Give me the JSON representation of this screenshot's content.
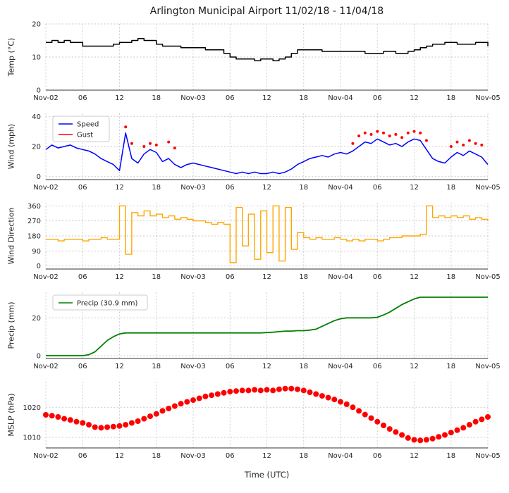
{
  "figure": {
    "title": "Arlington Municipal Airport 11/02/18 - 11/04/18",
    "xlabel": "Time (UTC)",
    "x_range_hours": [
      0,
      72
    ],
    "x_ticks_hours": [
      0,
      6,
      12,
      18,
      24,
      30,
      36,
      42,
      48,
      54,
      60,
      66,
      72
    ],
    "x_tick_labels": [
      "Nov-02",
      "06",
      "12",
      "18",
      "Nov-03",
      "06",
      "12",
      "18",
      "Nov-04",
      "06",
      "12",
      "18",
      "Nov-05"
    ]
  },
  "chart_data": [
    {
      "type": "line",
      "ylabel": "Temp (°C)",
      "ylim": [
        0,
        20
      ],
      "yticks": [
        0,
        10,
        20
      ],
      "x_step_hours": 1,
      "series": [
        {
          "name": "Temp",
          "type": "step",
          "color": "#000000",
          "width": 1.5,
          "values": [
            14.4,
            15.0,
            14.4,
            15.0,
            14.4,
            14.4,
            13.3,
            13.3,
            13.3,
            13.3,
            13.3,
            13.9,
            14.4,
            14.4,
            15.0,
            15.6,
            15.0,
            15.0,
            13.9,
            13.3,
            13.3,
            13.3,
            12.8,
            12.8,
            12.8,
            12.8,
            12.2,
            12.2,
            12.2,
            11.1,
            10.0,
            9.4,
            9.4,
            9.4,
            8.9,
            9.4,
            9.4,
            8.9,
            9.4,
            10.0,
            11.1,
            12.2,
            12.2,
            12.2,
            12.2,
            11.7,
            11.7,
            11.7,
            11.7,
            11.7,
            11.7,
            11.7,
            11.1,
            11.1,
            11.1,
            11.7,
            11.7,
            11.1,
            11.1,
            11.7,
            12.2,
            12.8,
            13.3,
            13.9,
            13.9,
            14.4,
            14.4,
            13.9,
            13.9,
            13.9,
            14.4,
            14.4,
            13.3
          ]
        }
      ]
    },
    {
      "type": "line",
      "ylabel": "Wind (mph)",
      "ylim": [
        -2,
        42
      ],
      "yticks": [
        0,
        20,
        40
      ],
      "x_step_hours": 1,
      "legend": {
        "width": 80
      },
      "series": [
        {
          "name": "Speed",
          "type": "line",
          "color": "#0000ff",
          "width": 1.5,
          "values": [
            18,
            21,
            19,
            20,
            21,
            19,
            18,
            17,
            15,
            12,
            10,
            8,
            4,
            29,
            12,
            9,
            15,
            18,
            16,
            10,
            12,
            8,
            6,
            8,
            9,
            8,
            7,
            6,
            5,
            4,
            3,
            2,
            3,
            2,
            3,
            2,
            2,
            3,
            2,
            3,
            5,
            8,
            10,
            12,
            13,
            14,
            13,
            15,
            16,
            15,
            17,
            20,
            23,
            22,
            25,
            23,
            21,
            22,
            20,
            23,
            25,
            24,
            18,
            12,
            10,
            9,
            13,
            16,
            14,
            17,
            15,
            13,
            8
          ]
        },
        {
          "name": "Gust",
          "type": "scatter",
          "color": "#ff0000",
          "marker_size": 2,
          "values": [
            null,
            null,
            null,
            null,
            null,
            null,
            null,
            null,
            null,
            null,
            null,
            null,
            null,
            33,
            22,
            null,
            20,
            22,
            21,
            null,
            23,
            19,
            null,
            null,
            null,
            null,
            null,
            null,
            null,
            null,
            null,
            null,
            null,
            null,
            null,
            null,
            null,
            null,
            null,
            null,
            null,
            null,
            null,
            null,
            null,
            null,
            null,
            null,
            null,
            null,
            22,
            27,
            29,
            28,
            30,
            29,
            27,
            28,
            26,
            29,
            30,
            29,
            24,
            null,
            null,
            null,
            20,
            23,
            21,
            24,
            22,
            21,
            null
          ]
        }
      ]
    },
    {
      "type": "line",
      "ylabel": "Wind Direction",
      "ylim": [
        -18,
        378
      ],
      "yticks": [
        0,
        90,
        180,
        270,
        360
      ],
      "x_step_hours": 1,
      "series": [
        {
          "name": "Direction",
          "type": "step",
          "color": "#ffa500",
          "width": 1.4,
          "values": [
            160,
            160,
            150,
            160,
            160,
            160,
            150,
            160,
            160,
            170,
            160,
            160,
            360,
            70,
            320,
            300,
            330,
            300,
            310,
            290,
            300,
            280,
            290,
            280,
            270,
            270,
            260,
            250,
            260,
            250,
            20,
            350,
            120,
            310,
            40,
            330,
            80,
            360,
            30,
            350,
            100,
            200,
            170,
            160,
            170,
            160,
            160,
            170,
            160,
            150,
            160,
            150,
            160,
            160,
            150,
            160,
            170,
            170,
            180,
            180,
            180,
            190,
            360,
            290,
            300,
            290,
            300,
            290,
            300,
            280,
            290,
            280,
            270
          ]
        }
      ]
    },
    {
      "type": "line",
      "ylabel": "Precip (mm)",
      "ylim": [
        -1.5,
        33.5
      ],
      "yticks": [
        0,
        20
      ],
      "x_step_hours": 1,
      "total_mm": 30.9,
      "legend": {
        "width": 134
      },
      "series": [
        {
          "name": "Precip",
          "legend_label": "Precip (30.9 mm)",
          "type": "line",
          "color": "#008000",
          "width": 1.8,
          "values": [
            0,
            0,
            0,
            0,
            0,
            0,
            0,
            0.5,
            2,
            5,
            8,
            10,
            11.5,
            12,
            12,
            12,
            12,
            12,
            12,
            12,
            12,
            12,
            12,
            12,
            12,
            12,
            12,
            12,
            12,
            12,
            12,
            12,
            12,
            12,
            12,
            12,
            12.2,
            12.4,
            12.7,
            13,
            13,
            13.2,
            13.2,
            13.5,
            14,
            15.5,
            17,
            18.5,
            19.5,
            20,
            20,
            20,
            20,
            20,
            20.3,
            21.5,
            23,
            25,
            27,
            28.5,
            30,
            30.9,
            30.9,
            30.9,
            30.9,
            30.9,
            30.9,
            30.9,
            30.9,
            30.9,
            30.9,
            30.9,
            30.9
          ]
        }
      ]
    },
    {
      "type": "scatter",
      "ylabel": "MSLP (hPa)",
      "ylim": [
        1006.5,
        1028.5
      ],
      "yticks": [
        1010,
        1020
      ],
      "x_step_hours": 1,
      "series": [
        {
          "name": "MSLP",
          "type": "scatter",
          "color": "#ff0000",
          "marker_size": 4,
          "values": [
            1017.5,
            1017.2,
            1016.8,
            1016.2,
            1015.8,
            1015.2,
            1014.8,
            1014.2,
            1013.4,
            1013.2,
            1013.4,
            1013.6,
            1013.8,
            1014.2,
            1014.8,
            1015.4,
            1016.2,
            1017.0,
            1017.8,
            1018.8,
            1019.6,
            1020.4,
            1021.2,
            1021.8,
            1022.4,
            1023.0,
            1023.6,
            1024.0,
            1024.4,
            1024.8,
            1025.2,
            1025.4,
            1025.6,
            1025.6,
            1025.8,
            1025.6,
            1025.8,
            1025.6,
            1026.0,
            1026.2,
            1026.2,
            1026.0,
            1025.6,
            1025.0,
            1024.4,
            1023.8,
            1023.2,
            1022.6,
            1021.8,
            1021.0,
            1020.0,
            1018.8,
            1017.6,
            1016.4,
            1015.2,
            1014.0,
            1012.8,
            1011.8,
            1010.8,
            1009.8,
            1009.2,
            1009.0,
            1009.2,
            1009.6,
            1010.2,
            1010.8,
            1011.6,
            1012.4,
            1013.2,
            1014.2,
            1015.2,
            1016.0,
            1016.8
          ]
        }
      ]
    }
  ]
}
